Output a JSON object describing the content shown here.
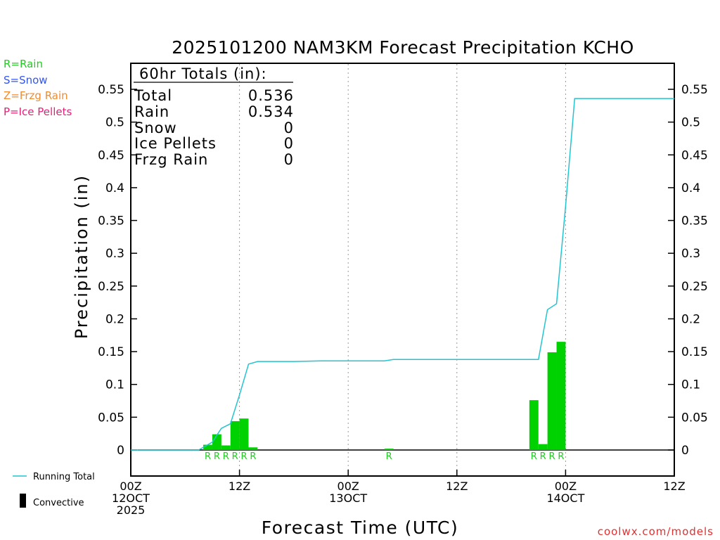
{
  "chart_data": {
    "type": "bar",
    "title": "2025101200 NAM3KM Forecast Precipitation KCHO",
    "xlabel": "Forecast Time (UTC)",
    "ylabel": "Precipitation (in)",
    "ylim": [
      -0.04,
      0.59
    ],
    "xlim_hours": [
      0,
      60
    ],
    "yticks": [
      "0",
      "0.05",
      "0.1",
      "0.15",
      "0.2",
      "0.25",
      "0.3",
      "0.35",
      "0.4",
      "0.45",
      "0.5",
      "0.55"
    ],
    "xticks": [
      {
        "hour": 0,
        "lines": [
          "00Z",
          "12OCT",
          "2025"
        ]
      },
      {
        "hour": 12,
        "lines": [
          "12Z"
        ]
      },
      {
        "hour": 24,
        "lines": [
          "00Z",
          "13OCT"
        ]
      },
      {
        "hour": 36,
        "lines": [
          "12Z"
        ]
      },
      {
        "hour": 48,
        "lines": [
          "00Z",
          "14OCT"
        ]
      },
      {
        "hour": 60,
        "lines": [
          "12Z"
        ]
      }
    ],
    "grid": "vertical dotted at 12Z/00Z",
    "bars": [
      {
        "hour": 9,
        "value": 0.008,
        "ptype": "R"
      },
      {
        "hour": 10,
        "value": 0.024,
        "ptype": "R"
      },
      {
        "hour": 11,
        "value": 0.007,
        "ptype": "R"
      },
      {
        "hour": 12,
        "value": 0.044,
        "ptype": "R"
      },
      {
        "hour": 13,
        "value": 0.048,
        "ptype": "R"
      },
      {
        "hour": 14,
        "value": 0.004,
        "ptype": "R"
      },
      {
        "hour": 29,
        "value": 0.002,
        "ptype": "R"
      },
      {
        "hour": 45,
        "value": 0.076,
        "ptype": "R"
      },
      {
        "hour": 46,
        "value": 0.009,
        "ptype": "R"
      },
      {
        "hour": 47,
        "value": 0.149,
        "ptype": "R"
      },
      {
        "hour": 48,
        "value": 0.165,
        "ptype": "R"
      }
    ],
    "running_total": {
      "x": [
        0,
        7.5,
        9,
        10,
        11,
        12,
        13,
        14,
        18,
        21,
        24,
        27,
        28,
        29,
        30,
        45,
        46,
        47,
        48,
        49,
        60
      ],
      "y": [
        0,
        0,
        0.012,
        0.033,
        0.04,
        0.084,
        0.131,
        0.135,
        0.135,
        0.136,
        0.136,
        0.136,
        0.136,
        0.138,
        0.138,
        0.138,
        0.214,
        0.223,
        0.372,
        0.536,
        0.536
      ]
    },
    "totals_box": {
      "heading": "60hr Totals (in):",
      "rows": [
        {
          "label": "Total",
          "value": "0.536"
        },
        {
          "label": "Rain",
          "value": "0.534"
        },
        {
          "label": "Snow",
          "value": "0"
        },
        {
          "label": "Ice Pellets",
          "value": "0"
        },
        {
          "label": "Frzg Rain",
          "value": "0"
        }
      ]
    },
    "ptype_legend": [
      {
        "text": "R=Rain",
        "color": "#22cc22"
      },
      {
        "text": "S=Snow",
        "color": "#3355ee"
      },
      {
        "text": "Z=Frzg Rain",
        "color": "#f08c30"
      },
      {
        "text": "P=Ice Pellets",
        "color": "#e0207a"
      }
    ],
    "series_legend": [
      {
        "name": "Running Total",
        "symbol": "line",
        "color": "#22c4d0"
      },
      {
        "name": "Convective",
        "symbol": "bar",
        "color": "#000000"
      }
    ],
    "credit": "coolwx.com/models",
    "colors": {
      "bar": "#00d100",
      "running_total": "#22c4d0",
      "rain_label": "#22cc22",
      "credit": "#e23030",
      "axis": "#000000"
    }
  }
}
